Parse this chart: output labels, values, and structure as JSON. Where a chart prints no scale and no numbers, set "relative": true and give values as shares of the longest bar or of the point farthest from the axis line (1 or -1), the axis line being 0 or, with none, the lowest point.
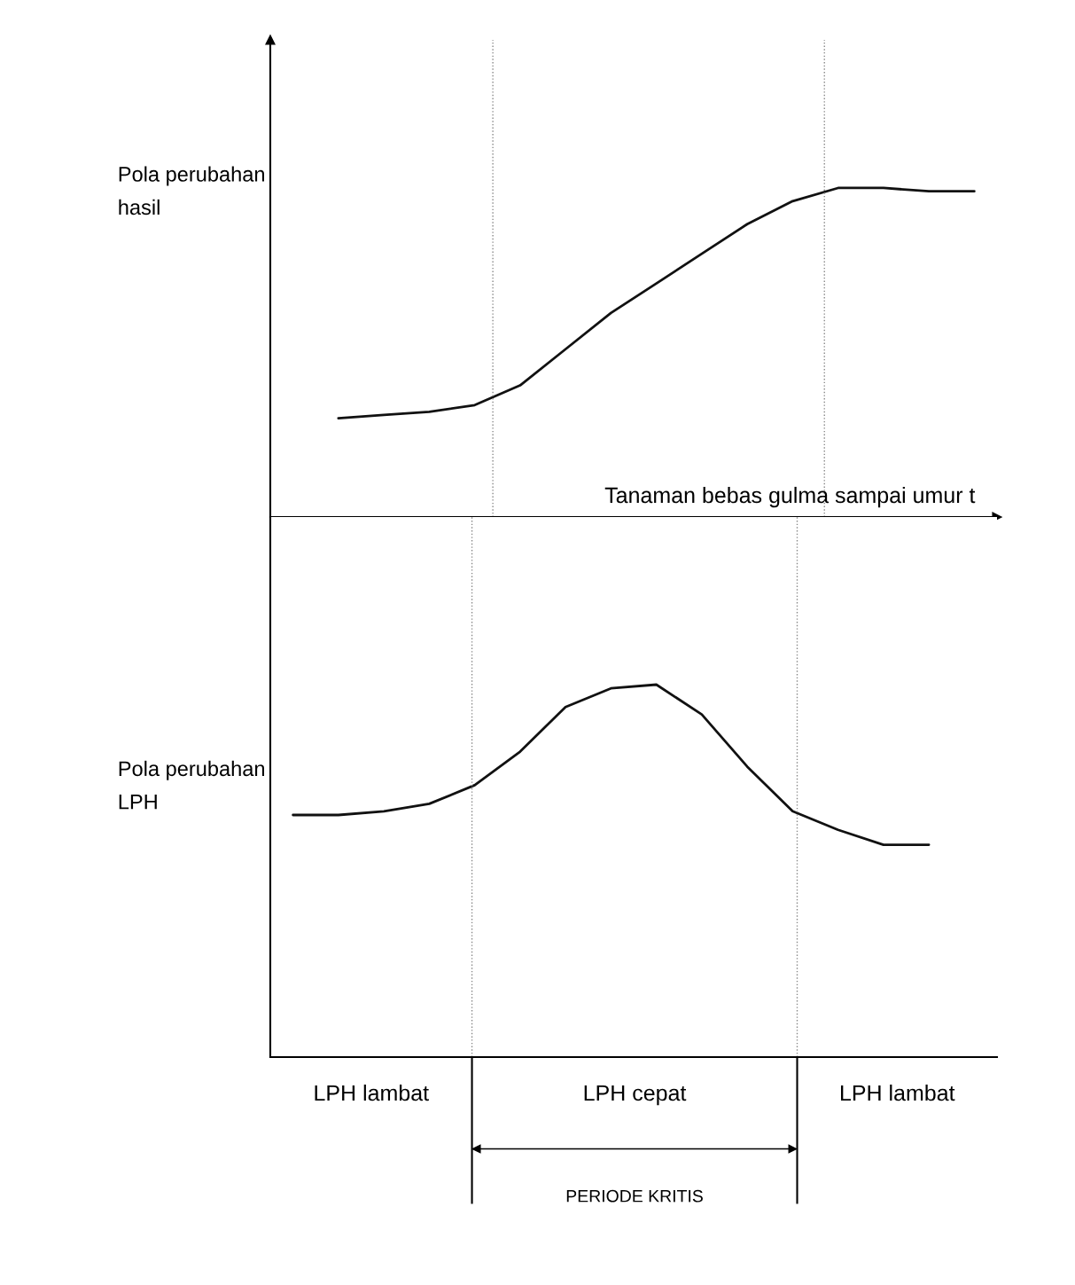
{
  "chart_data": [
    {
      "type": "line",
      "relative": true,
      "ylabel": "Pola perubahan\nhasil",
      "xlabel": "Tanaman bebas gulma sampai umur t",
      "categories": [
        null,
        null,
        null,
        null,
        null,
        null,
        null,
        null,
        null,
        null,
        null,
        null,
        null,
        null,
        null,
        null
      ],
      "series": [
        {
          "color": "#111111",
          "values": [
            null,
            0.3,
            0.31,
            0.32,
            0.34,
            0.4,
            0.51,
            0.62,
            0.71,
            0.8,
            0.89,
            0.96,
            1.0,
            1.0,
            0.99,
            0.99
          ]
        }
      ],
      "grid": false
    },
    {
      "type": "line",
      "relative": true,
      "ylabel": "Pola perubahan\nLPH",
      "categories": [
        null,
        null,
        null,
        null,
        null,
        null,
        null,
        null,
        null,
        null,
        null,
        null,
        null,
        null,
        null,
        null
      ],
      "series": [
        {
          "color": "#111111",
          "values": [
            0.65,
            0.65,
            0.66,
            0.68,
            0.73,
            0.82,
            0.94,
            0.99,
            1.0,
            0.92,
            0.78,
            0.66,
            0.61,
            0.57,
            0.57,
            null
          ]
        }
      ],
      "annotations": [
        "LPH lambat",
        "LPH cepat",
        "LPH lambat",
        "PERIODE KRITIS"
      ],
      "grid": false
    }
  ]
}
